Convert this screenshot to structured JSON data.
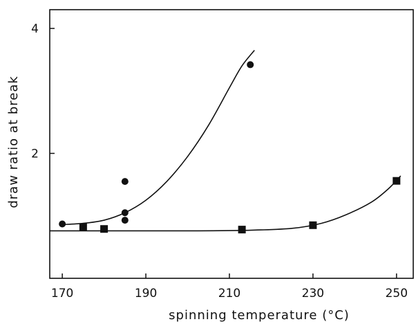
{
  "chart_data": {
    "type": "scatter",
    "title": "",
    "xlabel": "spinning temperature (°C)",
    "ylabel": "draw ratio at break",
    "xlim": [
      167,
      254
    ],
    "ylim": [
      0,
      4.3
    ],
    "x_ticks": [
      170,
      190,
      210,
      230,
      250
    ],
    "y_ticks": [
      2,
      4
    ],
    "grid": false,
    "legend": "none",
    "colors": {
      "ink": "#111111",
      "background": "#ffffff"
    },
    "series": [
      {
        "marker": "circle",
        "points": [
          {
            "x": 170,
            "y": 0.87
          },
          {
            "x": 185,
            "y": 1.55
          },
          {
            "x": 185,
            "y": 1.05
          },
          {
            "x": 185,
            "y": 0.93
          },
          {
            "x": 215,
            "y": 3.42
          }
        ],
        "curve": [
          [
            170,
            0.86
          ],
          [
            175,
            0.88
          ],
          [
            180,
            0.93
          ],
          [
            185,
            1.05
          ],
          [
            190,
            1.25
          ],
          [
            195,
            1.55
          ],
          [
            200,
            1.95
          ],
          [
            205,
            2.45
          ],
          [
            210,
            3.05
          ],
          [
            213,
            3.4
          ],
          [
            216,
            3.65
          ]
        ]
      },
      {
        "marker": "square",
        "points": [
          {
            "x": 175,
            "y": 0.82
          },
          {
            "x": 180,
            "y": 0.79
          },
          {
            "x": 213,
            "y": 0.78
          },
          {
            "x": 230,
            "y": 0.85
          },
          {
            "x": 250,
            "y": 1.56
          }
        ],
        "curve": [
          [
            167,
            0.76
          ],
          [
            180,
            0.76
          ],
          [
            200,
            0.76
          ],
          [
            215,
            0.77
          ],
          [
            225,
            0.8
          ],
          [
            232,
            0.88
          ],
          [
            238,
            1.02
          ],
          [
            244,
            1.22
          ],
          [
            248,
            1.43
          ],
          [
            251,
            1.64
          ]
        ]
      }
    ]
  }
}
